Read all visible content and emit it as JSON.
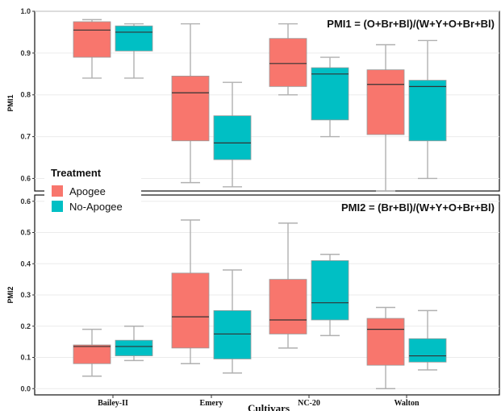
{
  "colors": {
    "apogee": "#F8766D",
    "no_apogee": "#00BFC4",
    "whisker": "#b0b0b0",
    "median": "#333333"
  },
  "legend": {
    "title": "Treatment",
    "items": [
      {
        "label": "Apogee",
        "color": "#F8766D"
      },
      {
        "label": "No-Apogee",
        "color": "#00BFC4"
      }
    ]
  },
  "chart_data": [
    {
      "type": "box",
      "title": "PMI1 = (O+Br+Bl)/(W+Y+O+Br+Bl)",
      "ylabel": "PMI1",
      "xlabel": "Cultivars",
      "ylim": [
        0.57,
        1.0
      ],
      "yticks": [
        "0.6",
        "0.7",
        "0.8",
        "0.9",
        "1.0"
      ],
      "categories": [
        "Bailey-II",
        "Emery",
        "NC-20",
        "Walton"
      ],
      "series": [
        {
          "name": "Apogee",
          "boxes": [
            {
              "min": 0.84,
              "q1": 0.89,
              "median": 0.955,
              "q3": 0.975,
              "max": 0.98
            },
            {
              "min": 0.59,
              "q1": 0.69,
              "median": 0.805,
              "q3": 0.845,
              "max": 0.97
            },
            {
              "min": 0.8,
              "q1": 0.82,
              "median": 0.875,
              "q3": 0.935,
              "max": 0.97
            },
            {
              "min": 0.57,
              "q1": 0.705,
              "median": 0.825,
              "q3": 0.86,
              "max": 0.92
            }
          ]
        },
        {
          "name": "No-Apogee",
          "boxes": [
            {
              "min": 0.84,
              "q1": 0.905,
              "median": 0.95,
              "q3": 0.965,
              "max": 0.97
            },
            {
              "min": 0.58,
              "q1": 0.645,
              "median": 0.685,
              "q3": 0.75,
              "max": 0.83
            },
            {
              "min": 0.7,
              "q1": 0.74,
              "median": 0.85,
              "q3": 0.865,
              "max": 0.89
            },
            {
              "min": 0.6,
              "q1": 0.69,
              "median": 0.82,
              "q3": 0.835,
              "max": 0.93
            }
          ]
        }
      ]
    },
    {
      "type": "box",
      "title": "PMI2 = (Br+Bl)/(W+Y+O+Br+Bl)",
      "ylabel": "PMI2",
      "xlabel": "Cultivars",
      "ylim": [
        -0.02,
        0.62
      ],
      "yticks": [
        "0.0",
        "0.1",
        "0.2",
        "0.3",
        "0.4",
        "0.5",
        "0.6"
      ],
      "categories": [
        "Bailey-II",
        "Emery",
        "NC-20",
        "Walton"
      ],
      "series": [
        {
          "name": "Apogee",
          "boxes": [
            {
              "min": 0.04,
              "q1": 0.08,
              "median": 0.135,
              "q3": 0.14,
              "max": 0.19
            },
            {
              "min": 0.08,
              "q1": 0.13,
              "median": 0.23,
              "q3": 0.37,
              "max": 0.54
            },
            {
              "min": 0.13,
              "q1": 0.175,
              "median": 0.22,
              "q3": 0.35,
              "max": 0.53
            },
            {
              "min": 0.0,
              "q1": 0.075,
              "median": 0.19,
              "q3": 0.225,
              "max": 0.26
            }
          ]
        },
        {
          "name": "No-Apogee",
          "boxes": [
            {
              "min": 0.09,
              "q1": 0.105,
              "median": 0.135,
              "q3": 0.155,
              "max": 0.2
            },
            {
              "min": 0.05,
              "q1": 0.095,
              "median": 0.175,
              "q3": 0.25,
              "max": 0.38
            },
            {
              "min": 0.17,
              "q1": 0.22,
              "median": 0.275,
              "q3": 0.41,
              "max": 0.43
            },
            {
              "min": 0.06,
              "q1": 0.085,
              "median": 0.105,
              "q3": 0.16,
              "max": 0.25
            }
          ]
        }
      ]
    }
  ]
}
